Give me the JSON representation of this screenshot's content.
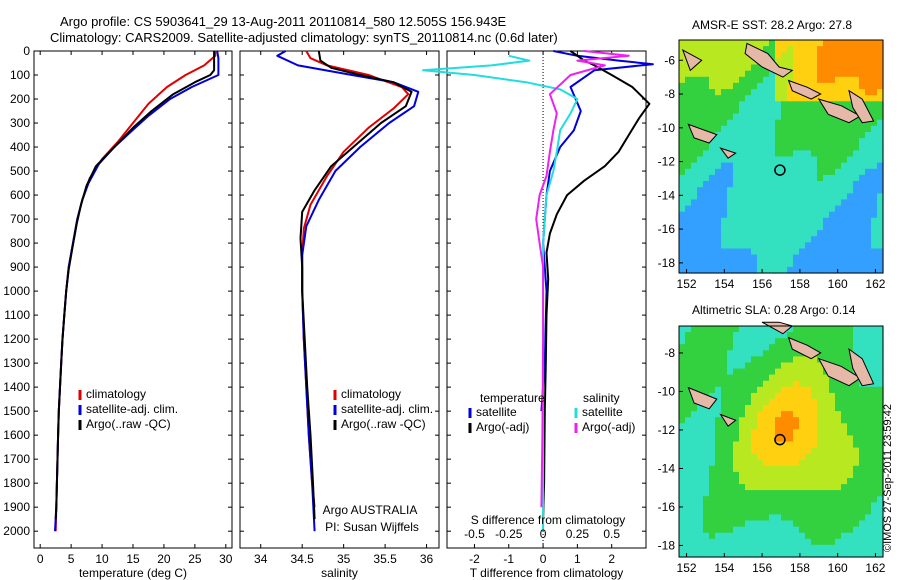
{
  "header": {
    "line1": "Argo profile: CS 5903641_29 13-Aug-2011 20110814_580 12.505S 156.943E",
    "line2": "Climatology: CARS2009. Satellite-adjusted climatology: synTS_20110814.nc (0.6d later)"
  },
  "colors": {
    "clim": "#e00000",
    "sat": "#0000dd",
    "argo": "#000000",
    "sat_s": "#22dddd",
    "argo_s": "#ee22ee"
  },
  "depth_axis": {
    "ticks": [
      0,
      100,
      200,
      300,
      400,
      500,
      600,
      700,
      800,
      900,
      1000,
      1100,
      1200,
      1300,
      1400,
      1500,
      1600,
      1700,
      1800,
      1900,
      2000
    ],
    "range": [
      0,
      2070
    ]
  },
  "chart_data": [
    {
      "type": "line",
      "name": "temperature",
      "xlabel": "temperature (deg C)",
      "xlim": [
        -1,
        31
      ],
      "xticks": [
        0,
        5,
        10,
        15,
        20,
        25,
        30
      ],
      "legend": [
        "climatology",
        "satellite-adj. clim.",
        "Argo(..raw -QC)"
      ],
      "series": [
        {
          "name": "climatology",
          "key": "clim",
          "points": [
            [
              28.3,
              0
            ],
            [
              28.3,
              20
            ],
            [
              26.5,
              60
            ],
            [
              23.5,
              100
            ],
            [
              20.5,
              150
            ],
            [
              17.5,
              220
            ],
            [
              15,
              300
            ],
            [
              12.5,
              380
            ],
            [
              10,
              450
            ],
            [
              8,
              530
            ],
            [
              6.8,
              620
            ],
            [
              6,
              700
            ],
            [
              5.3,
              800
            ],
            [
              4.6,
              900
            ],
            [
              4.2,
              1000
            ],
            [
              3.9,
              1100
            ],
            [
              3.6,
              1200
            ],
            [
              3.4,
              1300
            ],
            [
              3.2,
              1400
            ],
            [
              3,
              1500
            ],
            [
              2.9,
              1600
            ],
            [
              2.8,
              1700
            ],
            [
              2.7,
              1800
            ],
            [
              2.6,
              1900
            ],
            [
              2.5,
              2000
            ]
          ]
        },
        {
          "name": "satellite-adj. clim.",
          "key": "sat",
          "points": [
            [
              28.6,
              0
            ],
            [
              28.8,
              30
            ],
            [
              28.8,
              100
            ],
            [
              24.5,
              150
            ],
            [
              21,
              200
            ],
            [
              17.5,
              270
            ],
            [
              14.5,
              340
            ],
            [
              12,
              400
            ],
            [
              9.5,
              470
            ],
            [
              7.8,
              550
            ],
            [
              6.8,
              620
            ],
            [
              6,
              700
            ],
            [
              5.3,
              800
            ],
            [
              4.6,
              900
            ],
            [
              4.2,
              1000
            ],
            [
              3.9,
              1100
            ],
            [
              3.6,
              1200
            ],
            [
              3.4,
              1300
            ],
            [
              3.2,
              1400
            ],
            [
              3,
              1500
            ],
            [
              2.9,
              1600
            ],
            [
              2.8,
              1700
            ],
            [
              2.7,
              1800
            ],
            [
              2.6,
              1900
            ],
            [
              2.4,
              2000
            ]
          ]
        },
        {
          "name": "Argo(..raw -QC)",
          "key": "argo",
          "points": [
            [
              28.1,
              0
            ],
            [
              28.1,
              80
            ],
            [
              27.5,
              100
            ],
            [
              25,
              130
            ],
            [
              21.5,
              180
            ],
            [
              18,
              250
            ],
            [
              15,
              320
            ],
            [
              12,
              400
            ],
            [
              9,
              480
            ],
            [
              7.5,
              560
            ],
            [
              6.6,
              640
            ],
            [
              5.9,
              720
            ],
            [
              5.2,
              820
            ],
            [
              4.6,
              910
            ],
            [
              4.2,
              1000
            ],
            [
              3.9,
              1100
            ],
            [
              3.6,
              1200
            ],
            [
              3.4,
              1300
            ],
            [
              3.2,
              1400
            ],
            [
              3,
              1500
            ],
            [
              2.9,
              1600
            ],
            [
              2.8,
              1700
            ],
            [
              2.7,
              1800
            ],
            [
              2.6,
              1900
            ],
            [
              2.5,
              1950
            ]
          ]
        }
      ]
    },
    {
      "type": "line",
      "name": "salinity",
      "xlabel": "salinity",
      "xlim": [
        33.75,
        36.15
      ],
      "xticks": [
        34,
        34.5,
        35,
        35.5,
        36
      ],
      "legend": [
        "climatology",
        "satellite-adj. clim.",
        "Argo(..raw -QC)"
      ],
      "series": [
        {
          "name": "climatology",
          "key": "clim",
          "points": [
            [
              34.55,
              0
            ],
            [
              34.6,
              30
            ],
            [
              34.8,
              60
            ],
            [
              35.3,
              100
            ],
            [
              35.7,
              150
            ],
            [
              35.78,
              180
            ],
            [
              35.6,
              240
            ],
            [
              35.3,
              320
            ],
            [
              35,
              420
            ],
            [
              34.8,
              520
            ],
            [
              34.6,
              640
            ],
            [
              34.52,
              740
            ],
            [
              34.5,
              850
            ],
            [
              34.5,
              1000
            ],
            [
              34.52,
              1200
            ],
            [
              34.55,
              1400
            ],
            [
              34.58,
              1600
            ],
            [
              34.62,
              1800
            ],
            [
              34.65,
              1900
            ]
          ]
        },
        {
          "name": "satellite-adj. clim.",
          "key": "sat",
          "points": [
            [
              34.3,
              0
            ],
            [
              34.2,
              20
            ],
            [
              34.45,
              60
            ],
            [
              35.1,
              100
            ],
            [
              35.6,
              130
            ],
            [
              35.9,
              170
            ],
            [
              35.85,
              230
            ],
            [
              35.55,
              300
            ],
            [
              35.2,
              400
            ],
            [
              34.9,
              500
            ],
            [
              34.7,
              620
            ],
            [
              34.55,
              730
            ],
            [
              34.5,
              850
            ],
            [
              34.5,
              1000
            ],
            [
              34.52,
              1200
            ],
            [
              34.55,
              1400
            ],
            [
              34.58,
              1600
            ],
            [
              34.62,
              1800
            ],
            [
              34.65,
              2000
            ]
          ]
        },
        {
          "name": "Argo(..raw -QC)",
          "key": "argo",
          "points": [
            [
              34.7,
              0
            ],
            [
              34.72,
              40
            ],
            [
              34.85,
              70
            ],
            [
              35.2,
              100
            ],
            [
              35.6,
              130
            ],
            [
              35.82,
              170
            ],
            [
              35.75,
              230
            ],
            [
              35.45,
              300
            ],
            [
              35.15,
              390
            ],
            [
              34.85,
              480
            ],
            [
              34.65,
              580
            ],
            [
              34.5,
              670
            ],
            [
              34.48,
              780
            ],
            [
              34.5,
              900
            ],
            [
              34.5,
              1000
            ],
            [
              34.53,
              1200
            ],
            [
              34.56,
              1400
            ],
            [
              34.6,
              1600
            ],
            [
              34.63,
              1800
            ],
            [
              34.65,
              1950
            ]
          ]
        }
      ]
    },
    {
      "type": "line",
      "name": "differences",
      "xlabel": "T difference from climatology",
      "xlabel_top": "S difference from climatology",
      "xlim": [
        -2.8,
        3
      ],
      "xticks": [
        -2,
        -1,
        0,
        1,
        2
      ],
      "s_ticks": [
        {
          "label": "-0.5",
          "t": -2
        },
        {
          "label": "-0.25",
          "t": -1
        },
        {
          "label": "0",
          "t": 0
        },
        {
          "label": "0.25",
          "t": 1
        },
        {
          "label": "0.5",
          "t": 2
        }
      ],
      "legend_groups": {
        "temperature": "temperature",
        "salinity": "salinity"
      },
      "legend": [
        "satellite",
        "Argo(-adj)",
        "satellite",
        "Argo(-adj)"
      ],
      "series": [
        {
          "name": "T satellite",
          "key": "sat",
          "points": [
            [
              0.3,
              0
            ],
            [
              1,
              20
            ],
            [
              2.2,
              40
            ],
            [
              3.2,
              55
            ],
            [
              1.5,
              80
            ],
            [
              0.8,
              150
            ],
            [
              1.1,
              250
            ],
            [
              0.9,
              330
            ],
            [
              0.5,
              400
            ],
            [
              0.2,
              500
            ],
            [
              0.1,
              600
            ],
            [
              0,
              800
            ],
            [
              0.1,
              1000
            ],
            [
              0.05,
              1300
            ],
            [
              -0.05,
              1500
            ]
          ]
        },
        {
          "name": "T Argo(-adj)",
          "key": "argo",
          "points": [
            [
              0.8,
              0
            ],
            [
              1.2,
              40
            ],
            [
              1.5,
              60
            ],
            [
              2,
              100
            ],
            [
              2.6,
              150
            ],
            [
              3.1,
              220
            ],
            [
              2.8,
              280
            ],
            [
              2.5,
              350
            ],
            [
              2.2,
              420
            ],
            [
              1.8,
              480
            ],
            [
              1.2,
              540
            ],
            [
              0.7,
              600
            ],
            [
              0.4,
              680
            ],
            [
              0.2,
              760
            ],
            [
              0.1,
              840
            ],
            [
              0.15,
              950
            ],
            [
              0.1,
              1100
            ],
            [
              0.08,
              1300
            ],
            [
              0.05,
              1500
            ],
            [
              0.03,
              1800
            ],
            [
              0,
              1950
            ]
          ]
        },
        {
          "name": "S satellite",
          "key": "sat_s",
          "points": [
            [
              -1,
              20
            ],
            [
              -0.4,
              40
            ],
            [
              -1.5,
              60
            ],
            [
              -3.5,
              80
            ],
            [
              -2,
              100
            ],
            [
              -0.5,
              130
            ],
            [
              0.5,
              160
            ],
            [
              1,
              200
            ],
            [
              0.8,
              260
            ],
            [
              0.5,
              330
            ],
            [
              0.4,
              420
            ],
            [
              0.3,
              500
            ],
            [
              0.1,
              600
            ],
            [
              0,
              800
            ],
            [
              0,
              1200
            ],
            [
              0,
              1600
            ],
            [
              0,
              2000
            ]
          ]
        },
        {
          "name": "S Argo(-adj)",
          "key": "argo_s",
          "points": [
            [
              1.2,
              0
            ],
            [
              2.5,
              20
            ],
            [
              1,
              40
            ],
            [
              1.8,
              60
            ],
            [
              0.8,
              100
            ],
            [
              0.5,
              140
            ],
            [
              0.2,
              180
            ],
            [
              0.4,
              260
            ],
            [
              0.3,
              330
            ],
            [
              0.2,
              420
            ],
            [
              0.1,
              520
            ],
            [
              -0.1,
              600
            ],
            [
              -0.2,
              700
            ],
            [
              -0.1,
              800
            ],
            [
              0,
              900
            ],
            [
              0,
              1200
            ],
            [
              -0.02,
              1600
            ],
            [
              -0.05,
              1900
            ]
          ]
        }
      ]
    },
    {
      "type": "heatmap",
      "name": "sst",
      "title": "AMSR-E SST: 28.2 Argo: 27.8",
      "xticks": [
        152,
        154,
        156,
        158,
        160,
        162
      ],
      "yticks": [
        -6,
        -8,
        -10,
        -12,
        -14,
        -16,
        -18
      ],
      "xlim": [
        151.6,
        162.4
      ],
      "ylim": [
        -18.6,
        -4.8
      ],
      "marker": [
        156.943,
        -12.505
      ]
    },
    {
      "type": "heatmap",
      "name": "sla",
      "title": "Altimetric SLA: 0.28 Argo: 0.14",
      "xticks": [
        152,
        154,
        156,
        158,
        160,
        162
      ],
      "yticks": [
        -8,
        -10,
        -12,
        -14,
        -16,
        -18
      ],
      "xlim": [
        151.6,
        162.4
      ],
      "ylim": [
        -18.6,
        -6.6
      ],
      "marker": [
        156.943,
        -12.505
      ]
    }
  ],
  "credit": "©IMOS 27-Sep-2011 23:59:42",
  "note": {
    "line1": "Argo AUSTRALIA",
    "line2": "PI: Susan Wijffels"
  }
}
